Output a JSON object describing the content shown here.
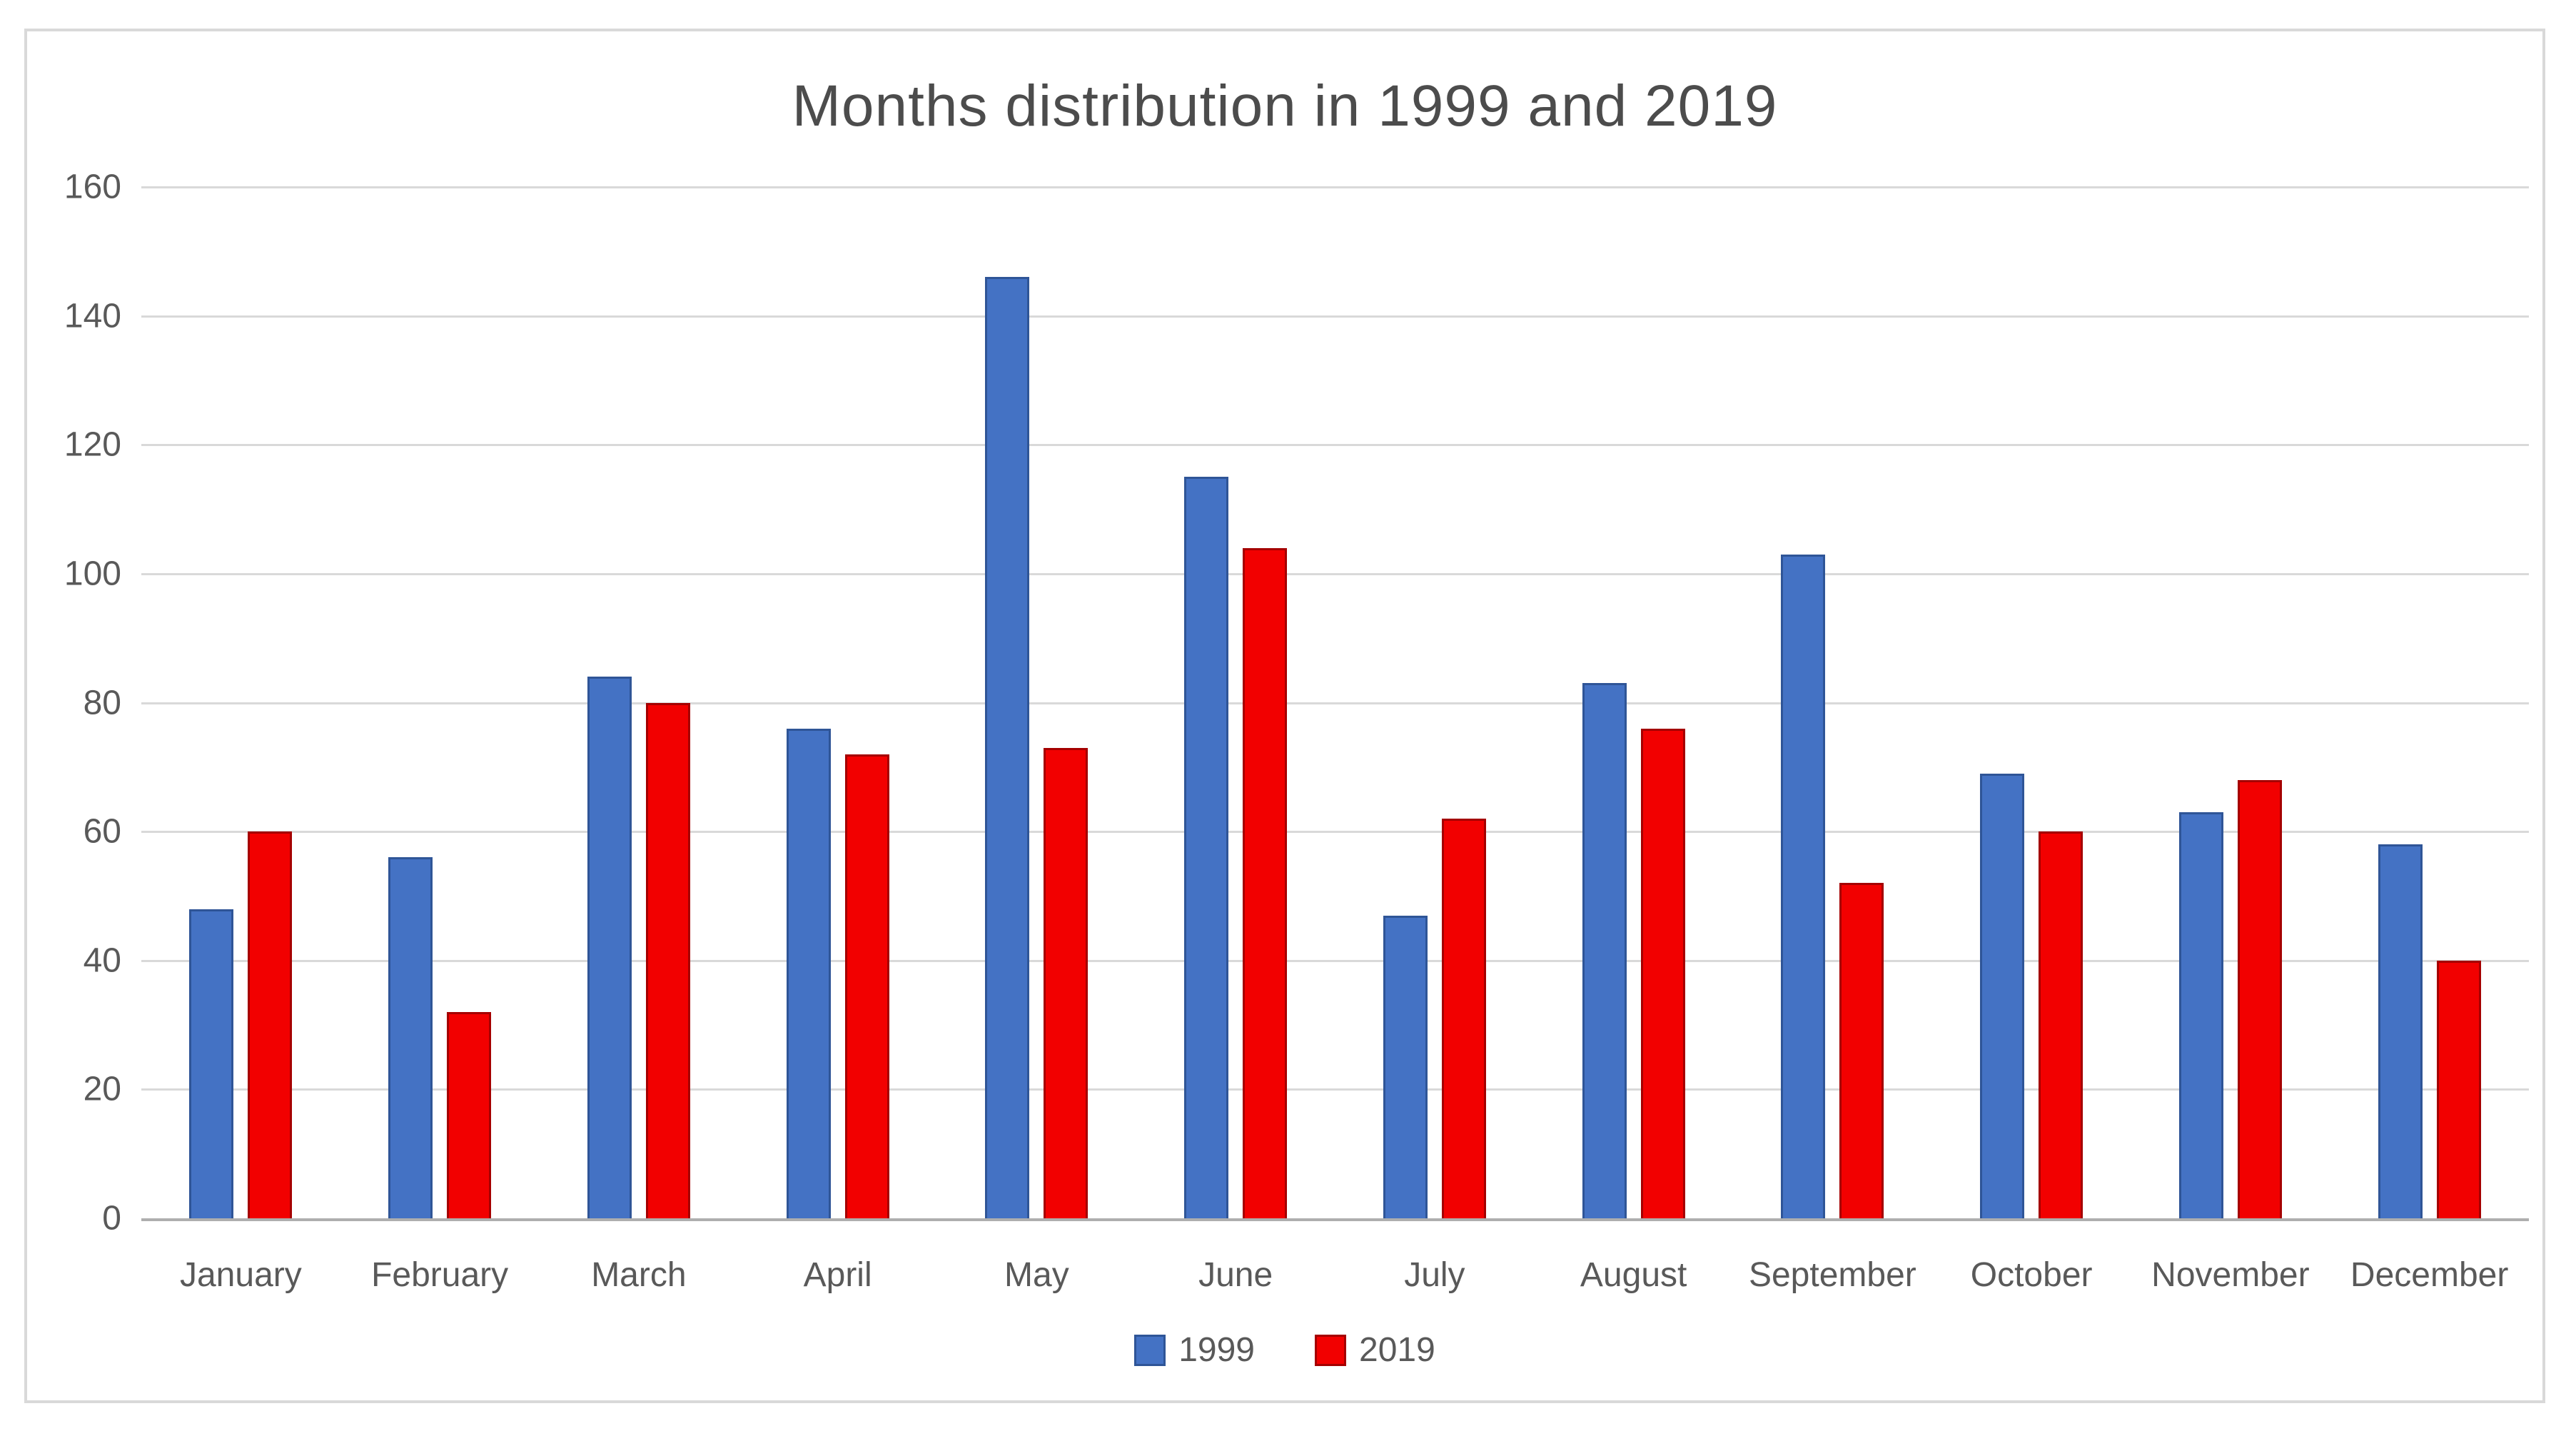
{
  "chart_data": {
    "type": "bar",
    "title": "Months distribution in 1999 and 2019",
    "categories": [
      "January",
      "February",
      "March",
      "April",
      "May",
      "June",
      "July",
      "August",
      "September",
      "October",
      "November",
      "December"
    ],
    "series": [
      {
        "name": "1999",
        "color": "#4472c4",
        "border_color": "#2f5597",
        "values": [
          48,
          56,
          84,
          76,
          146,
          115,
          47,
          83,
          103,
          69,
          63,
          58
        ]
      },
      {
        "name": "2019",
        "color": "#f20000",
        "border_color": "#a50000",
        "values": [
          60,
          32,
          80,
          72,
          73,
          104,
          62,
          76,
          52,
          60,
          68,
          40
        ]
      }
    ],
    "xlabel": "",
    "ylabel": "",
    "ylim": [
      0,
      160
    ],
    "ytick_step": 20,
    "yticks": [
      0,
      20,
      40,
      60,
      80,
      100,
      120,
      140,
      160
    ],
    "grid": true,
    "legend_position": "bottom"
  },
  "colors": {
    "background": "#ffffff",
    "frame_border": "#d9d9d9",
    "gridline": "#d9d9d9",
    "axis_line": "#aeaeae",
    "title_text": "#4c4c4c",
    "label_text": "#595959"
  }
}
